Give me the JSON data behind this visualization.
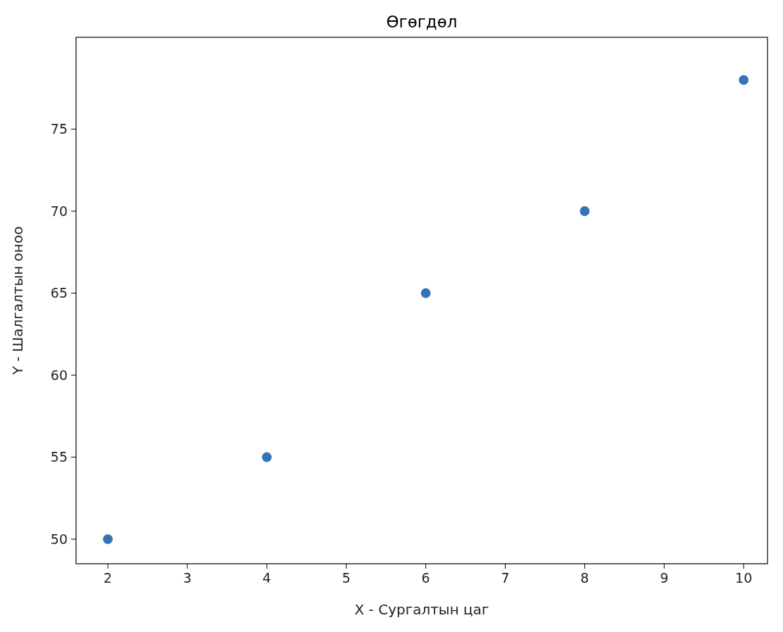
{
  "chart_data": {
    "type": "scatter",
    "title": "Өгөгдөл",
    "xlabel": "X - Сургалтын цаг",
    "ylabel": "Y - Шалгалтын оноо",
    "x": [
      2,
      4,
      6,
      8,
      10
    ],
    "series": [
      {
        "color": "#3274b5",
        "values": [
          50,
          55,
          65,
          70,
          78
        ]
      }
    ],
    "xlim": [
      1.6,
      10.3
    ],
    "ylim": [
      48.5,
      80.6
    ],
    "xticks": [
      2,
      3,
      4,
      5,
      6,
      7,
      8,
      9,
      10
    ],
    "yticks": [
      50,
      55,
      60,
      65,
      70,
      75
    ],
    "marker": "circle"
  }
}
